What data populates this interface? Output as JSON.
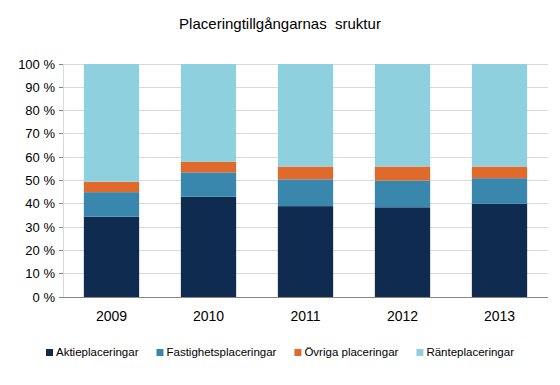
{
  "chart_data": {
    "type": "bar",
    "title": "Placeringtillgångarnas  sruktur",
    "categories": [
      "2009",
      "2010",
      "2011",
      "2012",
      "2013"
    ],
    "series": [
      {
        "name": "Aktieplaceringar",
        "color": "#0f2b4f",
        "values": [
          34.5,
          43,
          39,
          38.5,
          40
        ]
      },
      {
        "name": "Fastighetsplaceringar",
        "color": "#3a87ad",
        "values": [
          10.5,
          10.5,
          11.5,
          11.5,
          11
        ]
      },
      {
        "name": "Övriga placeringar",
        "color": "#e06a2c",
        "values": [
          4.5,
          4.5,
          5.5,
          6,
          5
        ]
      },
      {
        "name": "Ränteplaceringar",
        "color": "#8fd0df",
        "values": [
          50.5,
          42,
          44,
          44,
          44
        ]
      }
    ],
    "ylim": [
      0,
      100
    ],
    "yticks": [
      {
        "value": 0,
        "label": "0 %"
      },
      {
        "value": 10,
        "label": "10 %"
      },
      {
        "value": 20,
        "label": "20 %"
      },
      {
        "value": 30,
        "label": "30 %"
      },
      {
        "value": 40,
        "label": "40 %"
      },
      {
        "value": 50,
        "label": "50 %"
      },
      {
        "value": 60,
        "label": "60 %"
      },
      {
        "value": 70,
        "label": "70 %"
      },
      {
        "value": 80,
        "label": "80 %"
      },
      {
        "value": 90,
        "label": "90 %"
      },
      {
        "value": 100,
        "label": "100 %"
      }
    ],
    "stacked": true,
    "grid": true,
    "legend": "bottom"
  }
}
